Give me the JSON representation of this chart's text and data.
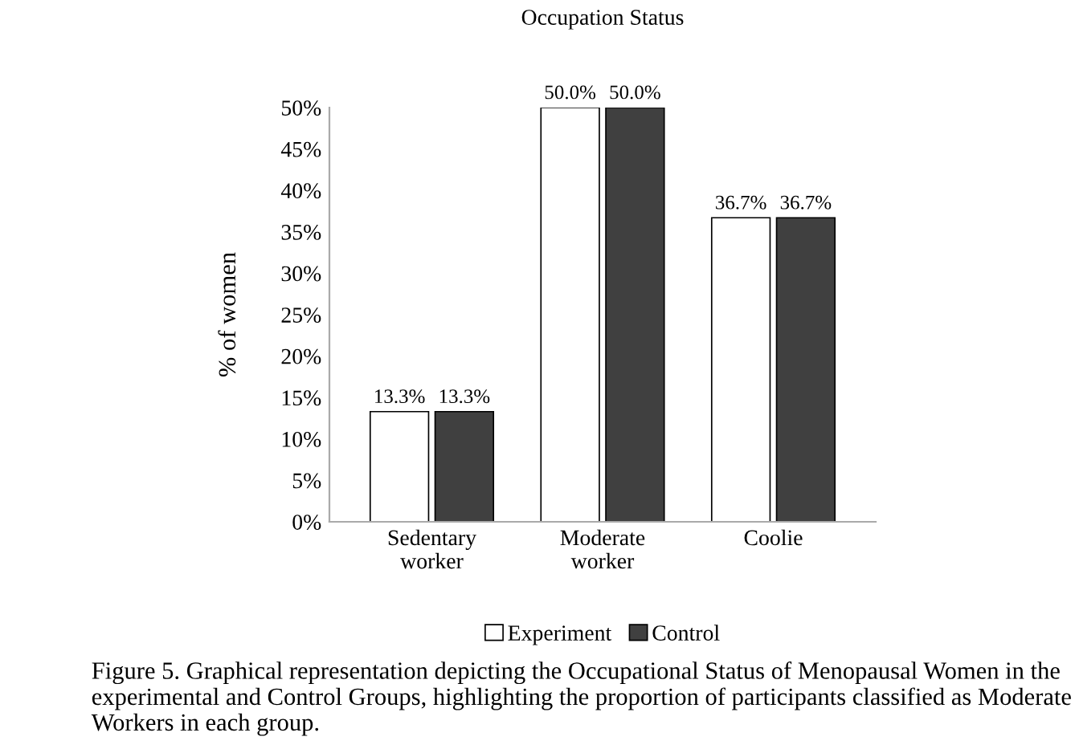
{
  "chart_data": {
    "type": "bar",
    "title": "Occupation Status",
    "ylabel": "% of women",
    "categories": [
      "Sedentary\nworker",
      "Moderate\nworker",
      "Coolie"
    ],
    "series": [
      {
        "name": "Experiment",
        "color": "#ffffff",
        "values": [
          13.3,
          50.0,
          36.7
        ],
        "value_labels": [
          "13.3%",
          "50.0%",
          "36.7%"
        ]
      },
      {
        "name": "Control",
        "color": "#404040",
        "values": [
          13.3,
          50.0,
          36.7
        ],
        "value_labels": [
          "13.3%",
          "50.0%",
          "36.7%"
        ]
      }
    ],
    "ylim": [
      0,
      50
    ],
    "yticks": [
      {
        "value": 0,
        "label": "0%"
      },
      {
        "value": 5,
        "label": "5%"
      },
      {
        "value": 10,
        "label": "10%"
      },
      {
        "value": 15,
        "label": "15%"
      },
      {
        "value": 20,
        "label": "20%"
      },
      {
        "value": 25,
        "label": "25%"
      },
      {
        "value": 30,
        "label": "30%"
      },
      {
        "value": 35,
        "label": "35%"
      },
      {
        "value": 40,
        "label": "40%"
      },
      {
        "value": 45,
        "label": "45%"
      },
      {
        "value": 50,
        "label": "50%"
      }
    ],
    "grid": false,
    "legend": "bottom",
    "annotations": [
      "Figure 5. Graphical representation depicting the Occupational Status of Menopausal Women in the experimental and Control Groups, highlighting the proportion of participants classified as Moderate Workers in each group."
    ]
  }
}
